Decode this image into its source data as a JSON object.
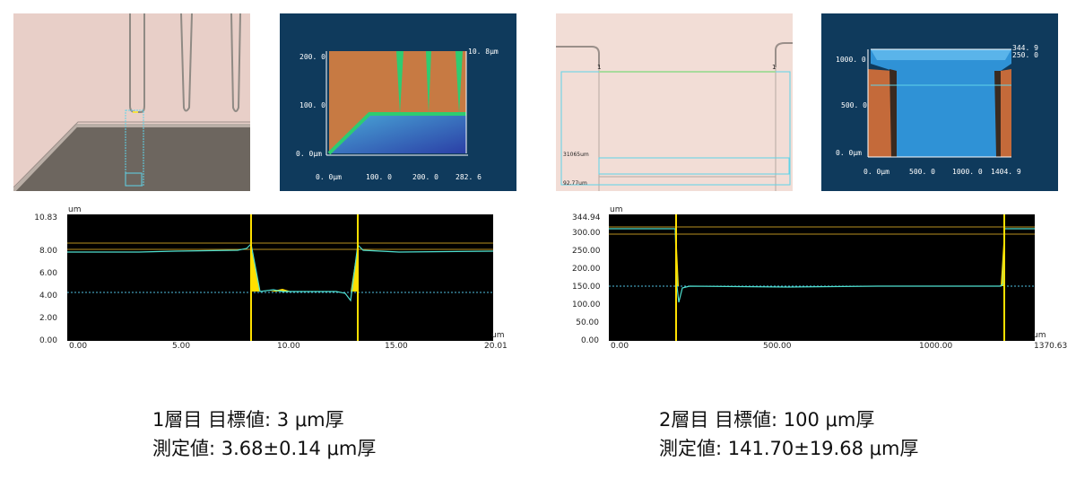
{
  "left": {
    "map": {
      "y_ticks": [
        "200. 0",
        "100. 0",
        "0. 0µm"
      ],
      "x_ticks": [
        "0. 0µm",
        "100. 0",
        "200. 0",
        "282. 6"
      ],
      "z_max": "10. 8µm"
    },
    "profile": {
      "unit_y": "um",
      "unit_x": "um",
      "y_top": "10.83",
      "y_ticks": [
        "8.00",
        "6.00",
        "4.00",
        "2.00",
        "0.00"
      ],
      "x_ticks": [
        "0.00",
        "5.00",
        "10.00",
        "15.00"
      ],
      "x_max": "20.01"
    },
    "caption": {
      "line1": "1層目 目標値: 3 μm厚",
      "line2": "測定値: 3.68±0.14 μm厚"
    }
  },
  "right": {
    "photo": {
      "marker_left": "1",
      "marker_right": "1",
      "measure_a": "31065um",
      "measure_b": "92.77um"
    },
    "map": {
      "y_ticks": [
        "1000. 0",
        "500. 0",
        "0. 0µm"
      ],
      "x_ticks": [
        "0. 0µm",
        "500. 0",
        "1000. 0",
        "1404. 9"
      ],
      "z_max": "344. 9",
      "z_mid": "250. 0"
    },
    "profile": {
      "unit_y": "um",
      "unit_x": "um",
      "y_top": "344.94",
      "y_ticks": [
        "300.00",
        "250.00",
        "200.00",
        "150.00",
        "100.00",
        "50.00",
        "0.00"
      ],
      "x_ticks": [
        "0.00",
        "500.00",
        "1000.00"
      ],
      "x_max": "1370.63"
    },
    "caption": {
      "line1": "2層目 目標値: 100 μm厚",
      "line2": "測定値: 141.70±19.68 μm厚"
    }
  },
  "colors": {
    "plot_bg": "#000000",
    "trace": "#4fe0d0",
    "marker": "#ffe000",
    "map_bg": "#0f3a5c"
  }
}
